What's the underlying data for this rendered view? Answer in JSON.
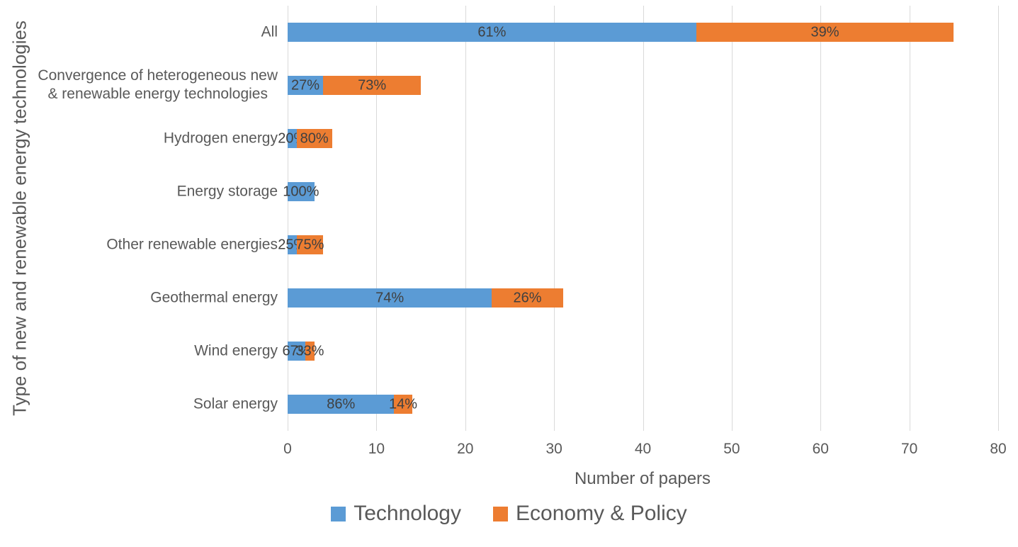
{
  "chart_data": {
    "type": "bar",
    "orientation": "horizontal",
    "stacked": true,
    "title": "",
    "xlabel": "Number of papers",
    "ylabel": "Type of new and renewable energy technologies",
    "xlim": [
      0,
      80
    ],
    "xticks": [
      0,
      10,
      20,
      30,
      40,
      50,
      60,
      70,
      80
    ],
    "grid": true,
    "legend_position": "bottom",
    "categories": [
      "All",
      "Convergence of heterogeneous new\n& renewable energy technologies",
      "Hydrogen energy",
      "Energy storage",
      "Other renewable energies",
      "Geothermal energy",
      "Wind energy",
      "Solar energy"
    ],
    "totals": [
      75,
      15,
      5,
      3,
      4,
      31,
      3,
      14
    ],
    "series": [
      {
        "name": "Technology",
        "color": "#5B9BD5",
        "values": [
          46,
          4,
          1,
          3,
          1,
          23,
          2,
          12
        ],
        "percent_labels": [
          "61%",
          "27%",
          "20%",
          "100%",
          "25%",
          "74%",
          "67%",
          "86%"
        ]
      },
      {
        "name": "Economy & Policy",
        "color": "#ED7D31",
        "values": [
          29,
          11,
          4,
          0,
          3,
          8,
          1,
          2
        ],
        "percent_labels": [
          "39%",
          "73%",
          "80%",
          "",
          "75%",
          "26%",
          "33%",
          "14%"
        ]
      }
    ]
  },
  "colors": {
    "technology": "#5B9BD5",
    "economy_policy": "#ED7D31",
    "gridline": "#D9D9D9",
    "axis_text": "#595959",
    "data_label": "#404040",
    "background": "#FFFFFF"
  }
}
